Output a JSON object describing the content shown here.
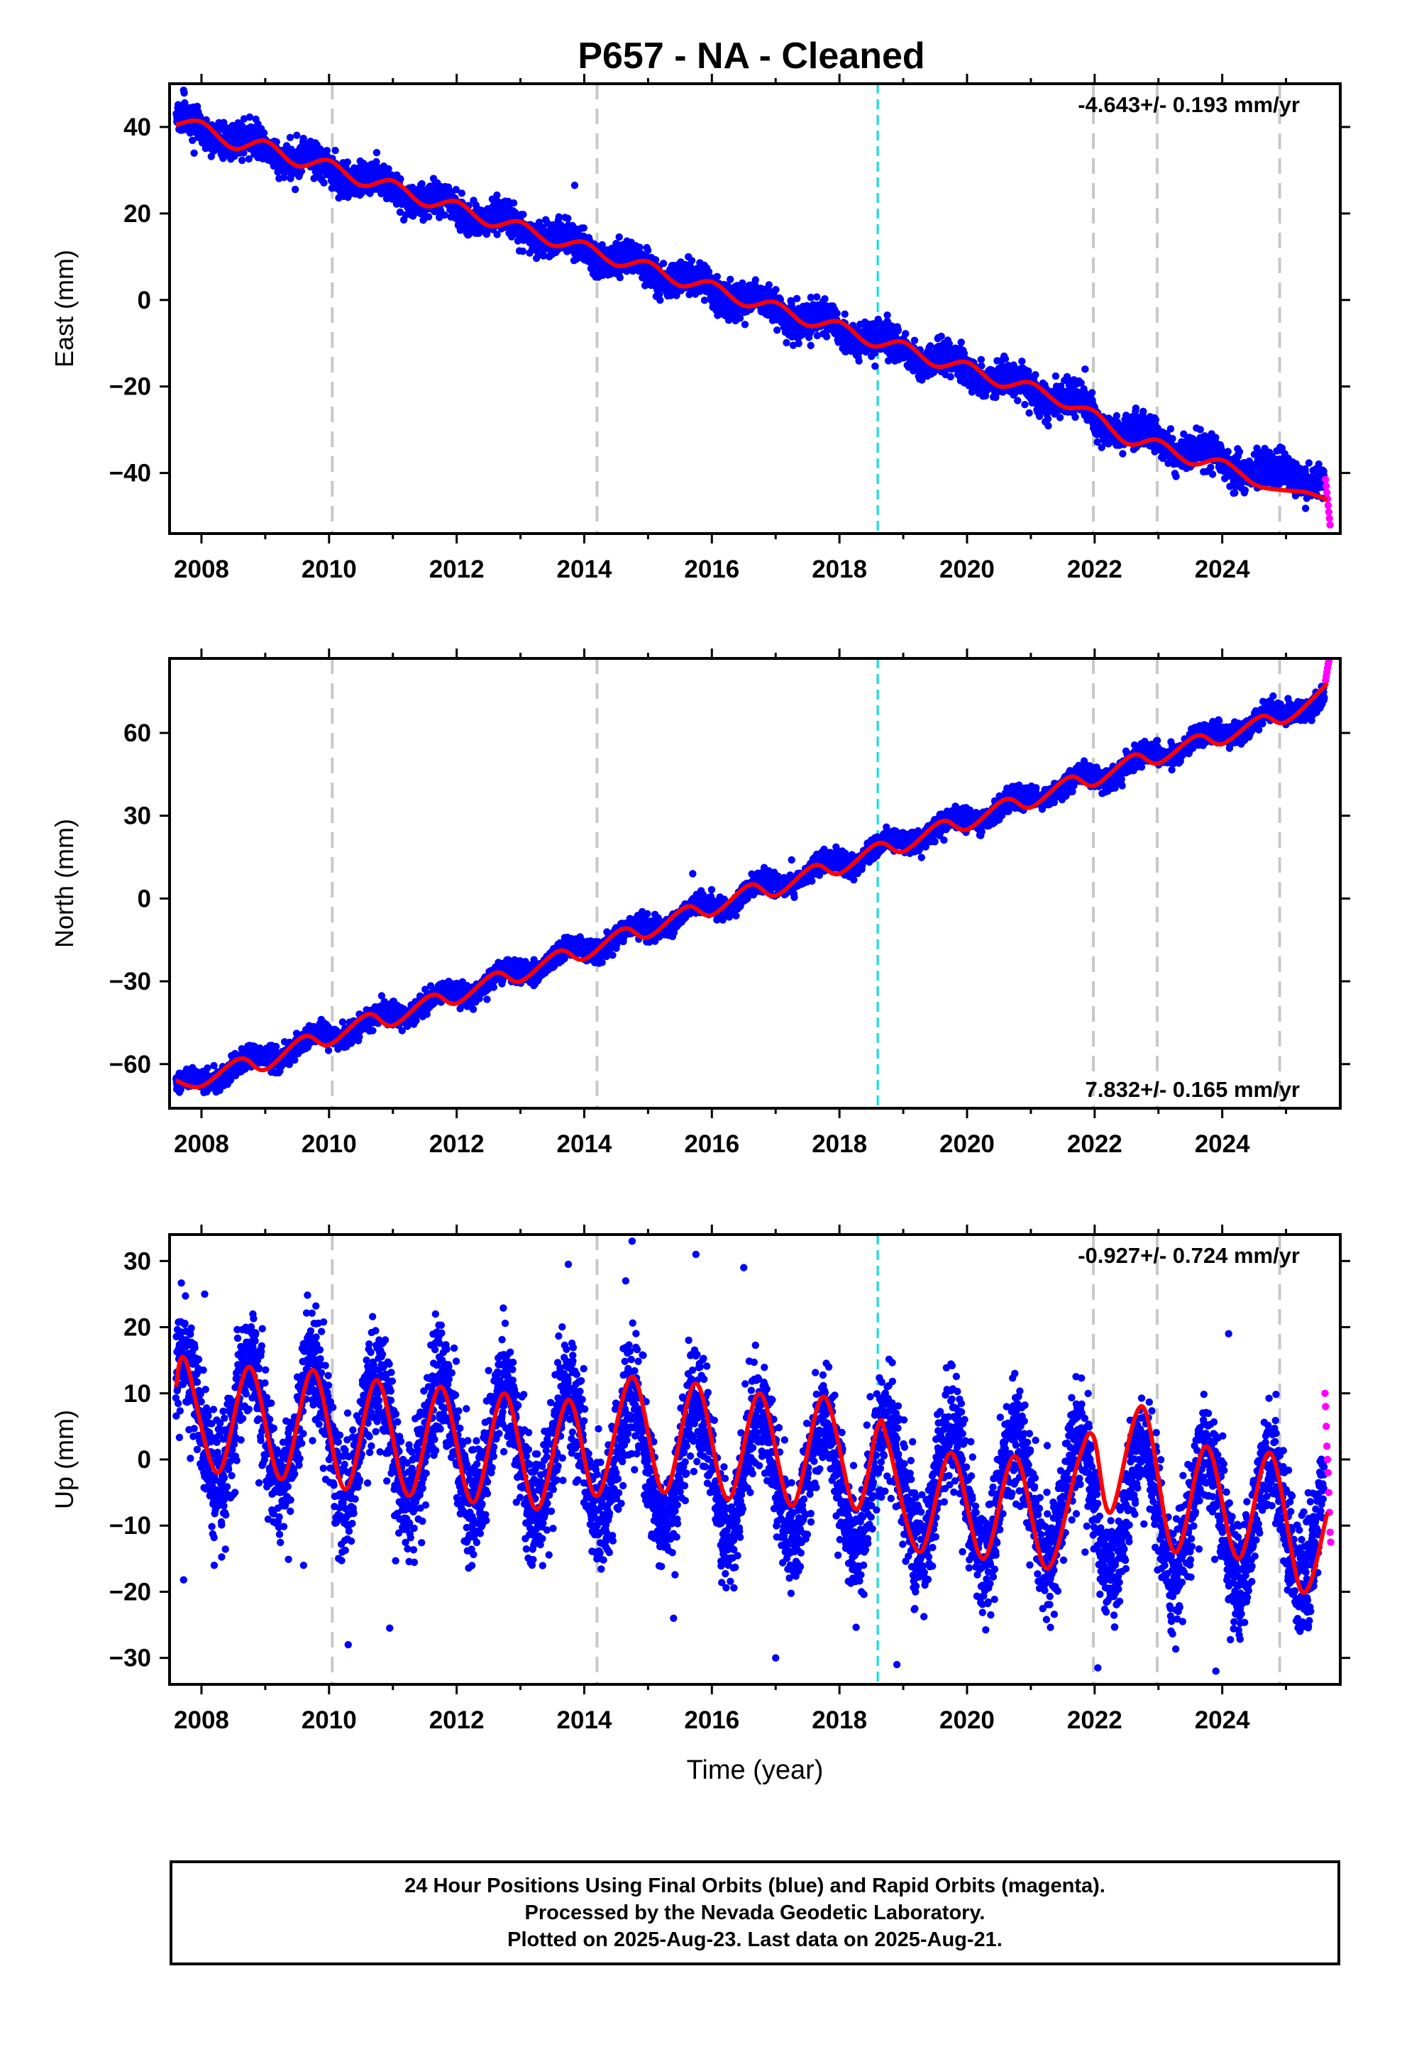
{
  "chart_data": {
    "title": "P657  - NA - Cleaned",
    "xlabel": "Time (year)",
    "xlim": [
      2007.5,
      2025.85
    ],
    "xticks": [
      2008,
      2010,
      2012,
      2014,
      2016,
      2018,
      2020,
      2022,
      2024
    ],
    "grey_dashed_lines_x": [
      2010.05,
      2014.2,
      2021.98,
      2022.98,
      2024.9
    ],
    "cyan_dashed_line_x": 2018.6,
    "series_colors": {
      "final_orbits": "#0000ff",
      "rapid_orbits": "#ff00ff",
      "model": "#ff0000",
      "equipment_change": "#c8c8c8",
      "event": "#00e0e0"
    },
    "panels": [
      {
        "ylabel": "East (mm)",
        "ylim": [
          -54,
          50
        ],
        "yticks": [
          40,
          20,
          0,
          -20,
          -40
        ],
        "rate_label": "-4.643+/- 0.193 mm/yr",
        "rate_label_position": "top-right",
        "trend": {
          "value_at_2007_6": 41.5,
          "rate": -4.643
        },
        "seasonal_amplitude": 1.6,
        "scatter": 1.8,
        "offsets": [
          {
            "x": 2021.98,
            "step": -2.5
          },
          {
            "x": 2024.9,
            "step": 2.5
          }
        ],
        "model_samples": [
          [
            2007.6,
            40.5
          ],
          [
            2008.0,
            41.2
          ],
          [
            2008.5,
            35.0
          ],
          [
            2009.0,
            36.8
          ],
          [
            2009.5,
            31.0
          ],
          [
            2010.0,
            32.3
          ],
          [
            2010.5,
            26.5
          ],
          [
            2011.0,
            27.6
          ],
          [
            2011.5,
            21.8
          ],
          [
            2012.0,
            22.8
          ],
          [
            2012.5,
            17.2
          ],
          [
            2013.0,
            18.1
          ],
          [
            2013.5,
            12.6
          ],
          [
            2014.0,
            13.4
          ],
          [
            2014.5,
            8.0
          ],
          [
            2015.0,
            8.9
          ],
          [
            2015.5,
            3.3
          ],
          [
            2016.0,
            4.2
          ],
          [
            2016.5,
            -1.3
          ],
          [
            2017.0,
            -0.5
          ],
          [
            2017.5,
            -5.9
          ],
          [
            2018.0,
            -5.0
          ],
          [
            2018.5,
            -10.6
          ],
          [
            2019.0,
            -9.7
          ],
          [
            2019.5,
            -15.3
          ],
          [
            2020.0,
            -14.4
          ],
          [
            2020.5,
            -19.9
          ],
          [
            2021.0,
            -19.1
          ],
          [
            2021.5,
            -24.6
          ],
          [
            2021.98,
            -25.5
          ],
          [
            2022.5,
            -33.2
          ],
          [
            2023.0,
            -32.4
          ],
          [
            2023.5,
            -37.9
          ],
          [
            2024.0,
            -37.0
          ],
          [
            2024.5,
            -42.6
          ],
          [
            2024.9,
            -43.9
          ],
          [
            2025.3,
            -44.4
          ],
          [
            2025.65,
            -46.2
          ]
        ],
        "outliers": [
          [
            2007.72,
            48.5
          ],
          [
            2013.85,
            26.5
          ],
          [
            2018.75,
            -3.5
          ],
          [
            2021.85,
            -16.0
          ]
        ],
        "rapid_points": [
          [
            2025.62,
            -41.5
          ],
          [
            2025.63,
            -43
          ],
          [
            2025.64,
            -44.5
          ],
          [
            2025.65,
            -46
          ],
          [
            2025.66,
            -47.5
          ],
          [
            2025.67,
            -49
          ],
          [
            2025.68,
            -50.5
          ],
          [
            2025.69,
            -52
          ]
        ]
      },
      {
        "ylabel": "North (mm)",
        "ylim": [
          -76,
          87
        ],
        "yticks": [
          60,
          30,
          0,
          -30,
          -60
        ],
        "rate_label": "7.832+/- 0.165 mm/yr",
        "rate_label_position": "bottom-right",
        "trend": {
          "value_at_2007_6": -68.5,
          "rate": 7.832
        },
        "seasonal_amplitude": 2.6,
        "scatter": 1.8,
        "offsets": [],
        "model_samples": [
          [
            2007.6,
            -66
          ],
          [
            2008.0,
            -68
          ],
          [
            2008.6,
            -58
          ],
          [
            2009.0,
            -62
          ],
          [
            2009.6,
            -50
          ],
          [
            2010.0,
            -53
          ],
          [
            2010.6,
            -42
          ],
          [
            2011.0,
            -46
          ],
          [
            2011.6,
            -35
          ],
          [
            2012.0,
            -38
          ],
          [
            2012.6,
            -27
          ],
          [
            2013.0,
            -30
          ],
          [
            2013.6,
            -19
          ],
          [
            2014.0,
            -22
          ],
          [
            2014.6,
            -11
          ],
          [
            2015.0,
            -14
          ],
          [
            2015.6,
            -3
          ],
          [
            2016.0,
            -6
          ],
          [
            2016.6,
            5
          ],
          [
            2017.0,
            1
          ],
          [
            2017.6,
            12
          ],
          [
            2018.0,
            9
          ],
          [
            2018.6,
            20
          ],
          [
            2019.0,
            17
          ],
          [
            2019.6,
            28
          ],
          [
            2020.0,
            25
          ],
          [
            2020.6,
            36
          ],
          [
            2021.0,
            33
          ],
          [
            2021.6,
            44
          ],
          [
            2022.0,
            41
          ],
          [
            2022.6,
            52
          ],
          [
            2023.0,
            49
          ],
          [
            2023.6,
            59
          ],
          [
            2024.0,
            56
          ],
          [
            2024.6,
            66
          ],
          [
            2025.0,
            64
          ],
          [
            2025.65,
            78
          ]
        ],
        "outliers": [
          [
            2015.7,
            9
          ],
          [
            2017.25,
            14
          ]
        ],
        "rapid_points": [
          [
            2025.62,
            79
          ],
          [
            2025.63,
            80.5
          ],
          [
            2025.64,
            82
          ],
          [
            2025.65,
            83.5
          ],
          [
            2025.66,
            85
          ],
          [
            2025.67,
            86
          ]
        ]
      },
      {
        "ylabel": "Up (mm)",
        "ylim": [
          -34,
          34
        ],
        "yticks": [
          30,
          20,
          10,
          0,
          -10,
          -20,
          -30
        ],
        "rate_label": "-0.927+/- 0.724 mm/yr",
        "rate_label_position": "top-right",
        "trend": {
          "value_at_2007_6": 6.5,
          "rate": -0.927
        },
        "seasonal_amplitude": 9.5,
        "scatter": 4.2,
        "offsets": [],
        "model_samples": [
          [
            2007.6,
            11
          ],
          [
            2007.75,
            15
          ],
          [
            2008.25,
            -2
          ],
          [
            2008.75,
            14
          ],
          [
            2009.25,
            -3
          ],
          [
            2009.75,
            13.5
          ],
          [
            2010.25,
            -4.5
          ],
          [
            2010.75,
            12
          ],
          [
            2011.25,
            -5.5
          ],
          [
            2011.75,
            11
          ],
          [
            2012.25,
            -6.5
          ],
          [
            2012.75,
            10
          ],
          [
            2013.25,
            -7.5
          ],
          [
            2013.75,
            9
          ],
          [
            2014.2,
            -5.5
          ],
          [
            2014.75,
            12.5
          ],
          [
            2015.25,
            -5
          ],
          [
            2015.75,
            11.5
          ],
          [
            2016.25,
            -6
          ],
          [
            2016.75,
            10
          ],
          [
            2017.25,
            -7
          ],
          [
            2017.75,
            9.5
          ],
          [
            2018.25,
            -7.5
          ],
          [
            2018.6,
            5
          ],
          [
            2018.75,
            3
          ],
          [
            2019.25,
            -14
          ],
          [
            2019.75,
            1
          ],
          [
            2020.25,
            -15
          ],
          [
            2020.75,
            0.5
          ],
          [
            2021.25,
            -16.5
          ],
          [
            2021.75,
            0
          ],
          [
            2021.98,
            3.5
          ],
          [
            2022.25,
            -8
          ],
          [
            2022.75,
            8
          ],
          [
            2023.25,
            -14
          ],
          [
            2023.75,
            2
          ],
          [
            2024.25,
            -15
          ],
          [
            2024.75,
            1
          ],
          [
            2025.25,
            -20
          ],
          [
            2025.65,
            -8
          ]
        ],
        "outliers": [
          [
            2007.72,
            -18.2
          ],
          [
            2008.2,
            -16
          ],
          [
            2009.6,
            -16
          ],
          [
            2010.3,
            -28
          ],
          [
            2010.95,
            -25.5
          ],
          [
            2015.4,
            -24
          ],
          [
            2017.0,
            -30
          ],
          [
            2014.75,
            33
          ],
          [
            2015.75,
            31
          ],
          [
            2016.5,
            29
          ],
          [
            2013.75,
            29.5
          ],
          [
            2018.9,
            -31
          ],
          [
            2021.85,
            -14
          ],
          [
            2022.05,
            -31.5
          ],
          [
            2023.9,
            -32
          ],
          [
            2024.1,
            19
          ],
          [
            2014.65,
            27
          ],
          [
            2008.05,
            25
          ]
        ],
        "rapid_points": [
          [
            2025.61,
            10
          ],
          [
            2025.62,
            8
          ],
          [
            2025.63,
            5
          ],
          [
            2025.64,
            2
          ],
          [
            2025.65,
            0
          ],
          [
            2025.66,
            -2
          ],
          [
            2025.67,
            -5
          ],
          [
            2025.68,
            -8
          ],
          [
            2025.69,
            -11
          ],
          [
            2025.7,
            -12.5
          ]
        ]
      }
    ]
  },
  "footer": {
    "line1": "24 Hour Positions Using Final Orbits (blue) and Rapid Orbits (magenta).",
    "line2": "Processed by the Nevada Geodetic Laboratory.",
    "line3": "Plotted on 2025-Aug-23. Last data on 2025-Aug-21."
  }
}
